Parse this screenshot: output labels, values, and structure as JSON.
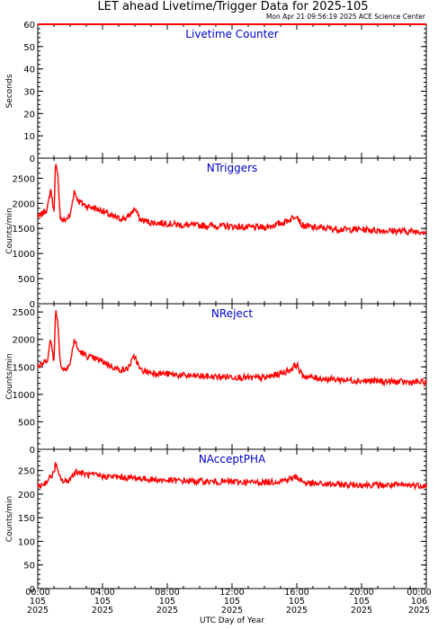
{
  "title": "LET ahead Livetime/Trigger Data for 2025-105",
  "subtitle": "Mon Apr 21 09:56:19 2025 ACE Science Center",
  "colors": {
    "data": "#ff0000",
    "panel_title": "#0000cc",
    "axis": "#000000"
  },
  "chart_data": [
    {
      "type": "line",
      "title": "Livetime Counter",
      "ylabel": "Seconds",
      "ylim": [
        0,
        60
      ],
      "yticks": [
        0,
        10,
        20,
        30,
        40,
        50,
        60
      ],
      "series": [
        {
          "x": [
            0,
            24
          ],
          "y": [
            60,
            60
          ]
        }
      ]
    },
    {
      "type": "line",
      "title": "NTriggers",
      "ylabel": "Counts/min",
      "ylim": [
        0,
        2900
      ],
      "yticks": [
        0,
        500,
        1000,
        1500,
        2000,
        2500
      ],
      "series": [
        {
          "x": [
            0,
            0.3,
            0.6,
            0.8,
            1.0,
            1.1,
            1.25,
            1.4,
            1.6,
            2.0,
            2.25,
            2.5,
            3.0,
            3.5,
            4.0,
            4.5,
            5.0,
            5.5,
            6.0,
            6.3,
            6.6,
            7.0,
            8.0,
            9.0,
            10.0,
            11.0,
            12.0,
            13.0,
            14.0,
            15.0,
            15.6,
            16.0,
            16.3,
            17.0,
            18.0,
            19.0,
            20.0,
            21.0,
            22.0,
            23.0,
            24.0
          ],
          "y": [
            1700,
            1800,
            1900,
            2300,
            1800,
            2800,
            2500,
            1700,
            1650,
            1750,
            2250,
            2050,
            1950,
            1900,
            1850,
            1750,
            1700,
            1700,
            1900,
            1680,
            1650,
            1620,
            1600,
            1560,
            1560,
            1550,
            1540,
            1520,
            1520,
            1600,
            1680,
            1780,
            1560,
            1520,
            1500,
            1480,
            1480,
            1460,
            1450,
            1440,
            1440
          ]
        }
      ]
    },
    {
      "type": "line",
      "title": "NReject",
      "ylabel": "Counts/min",
      "ylim": [
        0,
        2650
      ],
      "yticks": [
        0,
        500,
        1000,
        1500,
        2000,
        2500
      ],
      "series": [
        {
          "x": [
            0,
            0.3,
            0.6,
            0.8,
            1.0,
            1.1,
            1.25,
            1.4,
            1.6,
            2.0,
            2.25,
            2.5,
            3.0,
            3.5,
            4.0,
            4.5,
            5.0,
            5.5,
            6.0,
            6.3,
            6.6,
            7.0,
            8.0,
            9.0,
            10.0,
            11.0,
            12.0,
            13.0,
            14.0,
            15.0,
            15.6,
            16.0,
            16.3,
            17.0,
            18.0,
            19.0,
            20.0,
            21.0,
            22.0,
            23.0,
            24.0
          ],
          "y": [
            1500,
            1550,
            1650,
            2000,
            1600,
            2550,
            2250,
            1550,
            1450,
            1550,
            2000,
            1800,
            1700,
            1650,
            1600,
            1520,
            1450,
            1450,
            1700,
            1450,
            1420,
            1400,
            1370,
            1340,
            1330,
            1320,
            1320,
            1300,
            1300,
            1380,
            1450,
            1550,
            1350,
            1300,
            1280,
            1260,
            1250,
            1240,
            1230,
            1220,
            1220
          ]
        }
      ]
    },
    {
      "type": "line",
      "title": "NAcceptPHA",
      "xlabel": "UTC Day of Year",
      "ylabel": "Counts/min",
      "ylim": [
        0,
        295
      ],
      "yticks": [
        0,
        50,
        100,
        150,
        200,
        250
      ],
      "xticks": [
        {
          "time": "00:00",
          "doy": "105",
          "year": "2025"
        },
        {
          "time": "04:00",
          "doy": "105",
          "year": "2025"
        },
        {
          "time": "08:00",
          "doy": "105",
          "year": "2025"
        },
        {
          "time": "12:00",
          "doy": "105",
          "year": "2025"
        },
        {
          "time": "16:00",
          "doy": "105",
          "year": "2025"
        },
        {
          "time": "20:00",
          "doy": "105",
          "year": "2025"
        },
        {
          "time": "00:00",
          "doy": "106",
          "year": "2025"
        }
      ],
      "series": [
        {
          "x": [
            0,
            0.5,
            1.0,
            1.1,
            1.3,
            1.6,
            2.0,
            2.3,
            3.0,
            4.0,
            5.0,
            6.0,
            7.0,
            8.0,
            9.0,
            10.0,
            11.0,
            12.0,
            13.0,
            14.0,
            15.0,
            16.0,
            16.5,
            17.0,
            18.0,
            19.0,
            20.0,
            21.0,
            22.0,
            23.0,
            24.0
          ],
          "y": [
            215,
            225,
            245,
            265,
            240,
            225,
            232,
            248,
            242,
            238,
            236,
            234,
            231,
            229,
            228,
            227,
            226,
            226,
            225,
            225,
            228,
            236,
            224,
            222,
            221,
            220,
            220,
            219,
            219,
            219,
            218
          ]
        }
      ]
    }
  ]
}
